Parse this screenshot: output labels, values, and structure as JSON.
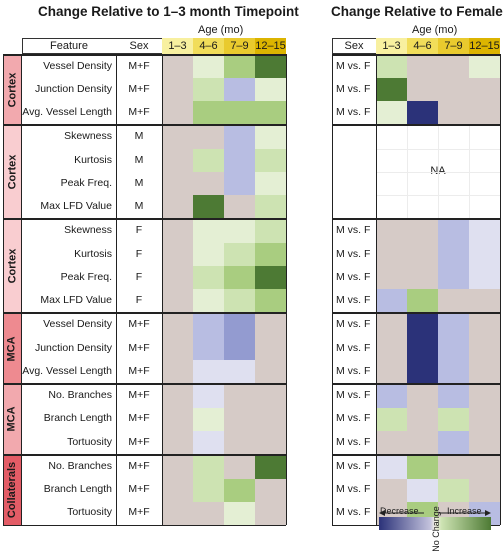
{
  "titles": {
    "left": "Change Relative to 1–3 month Timepoint",
    "right": "Change Relative to Females"
  },
  "age_label_left": "Age (mo)",
  "age_label_right": "Age (mo)",
  "headers": {
    "feature": "Feature",
    "sex": "Sex",
    "ages": [
      "1–3",
      "4–6",
      "7–9",
      "12–15"
    ]
  },
  "colors": {
    "grey": "#d6cbc7",
    "white": "#ffffff",
    "inc1": "#e4efd4",
    "inc2": "#cde3b2",
    "inc3": "#a9cd80",
    "inc4": "#4d7a34",
    "dec1": "#dfe0f0",
    "dec2": "#b8bde2",
    "dec3": "#939bd0",
    "dec4": "#2b3279",
    "feature_header": "#c5deb0",
    "sex_header": "#8fbe73",
    "age_header": [
      "#f8f0a0",
      "#f1dd5a",
      "#e9ca2e",
      "#dcb400"
    ],
    "section_bg": [
      "#f2a9ae",
      "#f9cdd0",
      "#f9cdd0",
      "#ee8a90",
      "#f2a9ae",
      "#e35c66"
    ]
  },
  "sections": [
    {
      "label": "Cortex",
      "rows": [
        {
          "feature": "Vessel Density",
          "sex": "M+F",
          "cmp": "M vs. F",
          "left": [
            "grey",
            "inc1",
            "inc3",
            "inc4"
          ],
          "right": [
            "inc2",
            "grey",
            "grey",
            "inc1"
          ]
        },
        {
          "feature": "Junction Density",
          "sex": "M+F",
          "cmp": "M vs. F",
          "left": [
            "grey",
            "inc2",
            "dec2",
            "inc1"
          ],
          "right": [
            "inc4",
            "grey",
            "grey",
            "grey"
          ]
        },
        {
          "feature": "Avg. Vessel Length",
          "sex": "M+F",
          "cmp": "M vs. F",
          "left": [
            "grey",
            "inc3",
            "inc3",
            "inc3"
          ],
          "right": [
            "inc1",
            "dec4",
            "grey",
            "grey"
          ]
        }
      ]
    },
    {
      "label": "Cortex",
      "na": "NA",
      "rows": [
        {
          "feature": "Skewness",
          "sex": "M",
          "cmp": "",
          "left": [
            "grey",
            "grey",
            "dec2",
            "inc1"
          ],
          "right": [
            "white",
            "white",
            "white",
            "white"
          ]
        },
        {
          "feature": "Kurtosis",
          "sex": "M",
          "cmp": "",
          "left": [
            "grey",
            "inc2",
            "dec2",
            "inc2"
          ],
          "right": [
            "white",
            "white",
            "white",
            "white"
          ]
        },
        {
          "feature": "Peak Freq.",
          "sex": "M",
          "cmp": "",
          "left": [
            "grey",
            "grey",
            "dec2",
            "inc1"
          ],
          "right": [
            "white",
            "white",
            "white",
            "white"
          ]
        },
        {
          "feature": "Max LFD Value",
          "sex": "M",
          "cmp": "",
          "left": [
            "grey",
            "inc4",
            "grey",
            "inc2"
          ],
          "right": [
            "white",
            "white",
            "white",
            "white"
          ]
        }
      ]
    },
    {
      "label": "Cortex",
      "rows": [
        {
          "feature": "Skewness",
          "sex": "F",
          "cmp": "M vs. F",
          "left": [
            "grey",
            "inc1",
            "inc1",
            "inc2"
          ],
          "right": [
            "grey",
            "grey",
            "dec2",
            "dec1"
          ]
        },
        {
          "feature": "Kurtosis",
          "sex": "F",
          "cmp": "M vs. F",
          "left": [
            "grey",
            "inc1",
            "inc2",
            "inc3"
          ],
          "right": [
            "grey",
            "grey",
            "dec2",
            "dec1"
          ]
        },
        {
          "feature": "Peak Freq.",
          "sex": "F",
          "cmp": "M vs. F",
          "left": [
            "grey",
            "inc2",
            "inc3",
            "inc4"
          ],
          "right": [
            "grey",
            "grey",
            "dec2",
            "dec1"
          ]
        },
        {
          "feature": "Max LFD Value",
          "sex": "F",
          "cmp": "M vs. F",
          "left": [
            "grey",
            "inc1",
            "inc2",
            "inc3"
          ],
          "right": [
            "dec2",
            "inc3",
            "grey",
            "grey"
          ]
        }
      ]
    },
    {
      "label": "MCA",
      "rows": [
        {
          "feature": "Vessel Density",
          "sex": "M+F",
          "cmp": "M vs. F",
          "left": [
            "grey",
            "dec2",
            "dec3",
            "grey"
          ],
          "right": [
            "grey",
            "dec4",
            "dec2",
            "grey"
          ]
        },
        {
          "feature": "Junction Density",
          "sex": "M+F",
          "cmp": "M vs. F",
          "left": [
            "grey",
            "dec2",
            "dec3",
            "grey"
          ],
          "right": [
            "grey",
            "dec4",
            "dec2",
            "grey"
          ]
        },
        {
          "feature": "Avg. Vessel Length",
          "sex": "M+F",
          "cmp": "M vs. F",
          "left": [
            "grey",
            "dec1",
            "dec1",
            "grey"
          ],
          "right": [
            "grey",
            "dec4",
            "dec2",
            "grey"
          ]
        }
      ]
    },
    {
      "label": "MCA",
      "rows": [
        {
          "feature": "No. Branches",
          "sex": "M+F",
          "cmp": "M vs. F",
          "left": [
            "grey",
            "dec1",
            "grey",
            "grey"
          ],
          "right": [
            "dec2",
            "grey",
            "dec2",
            "grey"
          ]
        },
        {
          "feature": "Branch Length",
          "sex": "M+F",
          "cmp": "M vs. F",
          "left": [
            "grey",
            "inc1",
            "grey",
            "grey"
          ],
          "right": [
            "inc2",
            "grey",
            "inc2",
            "grey"
          ]
        },
        {
          "feature": "Tortuosity",
          "sex": "M+F",
          "cmp": "M vs. F",
          "left": [
            "grey",
            "dec1",
            "grey",
            "grey"
          ],
          "right": [
            "grey",
            "grey",
            "dec2",
            "grey"
          ]
        }
      ]
    },
    {
      "label": "Collaterals",
      "rows": [
        {
          "feature": "No. Branches",
          "sex": "M+F",
          "cmp": "M vs. F",
          "left": [
            "grey",
            "inc2",
            "grey",
            "inc4"
          ],
          "right": [
            "dec1",
            "inc3",
            "grey",
            "grey"
          ]
        },
        {
          "feature": "Branch Length",
          "sex": "M+F",
          "cmp": "M vs. F",
          "left": [
            "grey",
            "inc2",
            "inc3",
            "grey"
          ],
          "right": [
            "grey",
            "dec1",
            "inc2",
            "grey"
          ]
        },
        {
          "feature": "Tortuosity",
          "sex": "M+F",
          "cmp": "M vs. F",
          "left": [
            "grey",
            "grey",
            "inc1",
            "grey"
          ],
          "right": [
            "grey",
            "inc3",
            "grey",
            "dec2"
          ]
        }
      ]
    }
  ],
  "legend": {
    "decrease": "Decrease",
    "increase": "Increase",
    "no_change": "No Change"
  }
}
